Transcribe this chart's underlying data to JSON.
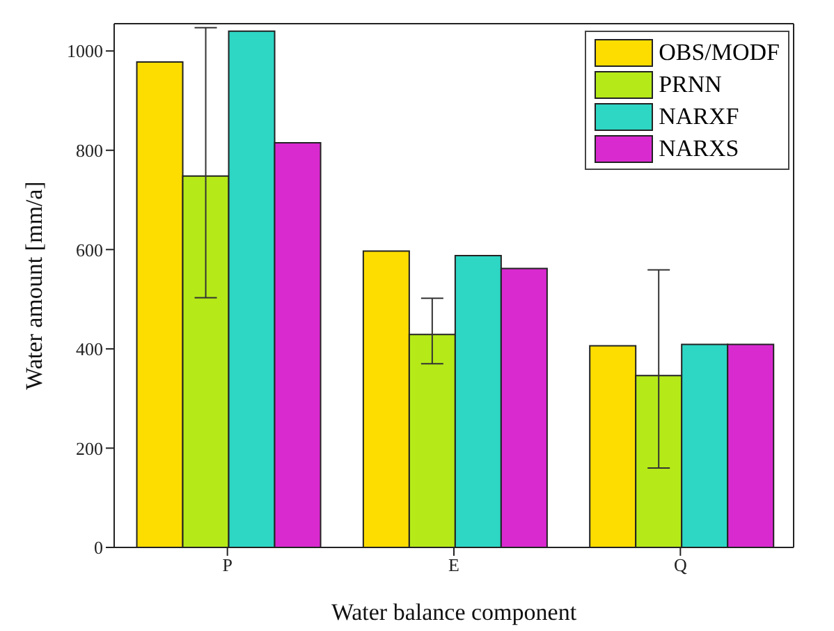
{
  "chart_data": {
    "type": "bar",
    "xlabel": "Water balance component",
    "ylabel": "Water amount [mm/a]",
    "categories": [
      "P",
      "E",
      "Q"
    ],
    "series": [
      {
        "name": "OBS/MODF",
        "color": "#fddd00",
        "values": [
          978,
          597,
          406
        ]
      },
      {
        "name": "PRNN",
        "color": "#b5ea18",
        "values": [
          748,
          429,
          346
        ],
        "errors": [
          [
            503,
            1047
          ],
          [
            370,
            502
          ],
          [
            160,
            559
          ]
        ]
      },
      {
        "name": "NARXF",
        "color": "#2ed6c4",
        "values": [
          1040,
          588,
          409
        ]
      },
      {
        "name": "NARXS",
        "color": "#d92ad0",
        "values": [
          815,
          562,
          409
        ]
      }
    ],
    "ylim": [
      0,
      1055
    ],
    "yticks": [
      0,
      200,
      400,
      600,
      800,
      1000
    ],
    "grid": false,
    "legend": "top right"
  }
}
